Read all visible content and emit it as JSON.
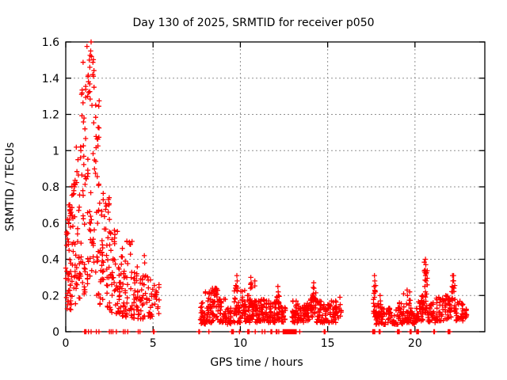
{
  "chart_data": {
    "type": "scatter",
    "title": "Day 130 of 2025, SRMTID for receiver p050",
    "xlabel": "GPS time / hours",
    "ylabel": "SRMTID / TECUs",
    "xlim": [
      0,
      24
    ],
    "ylim": [
      0,
      1.6
    ],
    "xticks": [
      0,
      5,
      10,
      15,
      20
    ],
    "xtick_labels": [
      "0",
      "5",
      "10",
      "15",
      "20"
    ],
    "yticks": [
      0,
      0.2,
      0.4,
      0.6,
      0.8,
      1.0,
      1.2,
      1.4,
      1.6
    ],
    "ytick_labels": [
      "0",
      "0.2",
      "0.4",
      "0.6",
      "0.8",
      "1",
      "1.2",
      "1.4",
      "1.6"
    ],
    "grid": true,
    "legend_position": "none",
    "background": "#ffffff",
    "axis_color": "#000000",
    "grid_color": "#909090",
    "marker": {
      "shape": "plus",
      "color": "#ff0000",
      "size": 7
    },
    "series": [
      {
        "name": "SRMTID",
        "note": "dense noisy scatter; bands give [x_start, x_end, y_min, y_max, n_points, bottom_bias] envelopes read from the plot",
        "bands": [
          [
            0.0,
            0.3,
            0.12,
            0.72,
            38,
            1.6
          ],
          [
            0.3,
            0.6,
            0.15,
            0.85,
            28,
            1.6
          ],
          [
            0.6,
            0.9,
            0.18,
            1.05,
            28,
            1.5
          ],
          [
            0.9,
            1.2,
            0.2,
            1.5,
            32,
            1.4
          ],
          [
            1.2,
            1.65,
            0.25,
            1.58,
            40,
            1.15
          ],
          [
            1.65,
            1.95,
            0.2,
            1.35,
            28,
            1.5
          ],
          [
            1.95,
            2.3,
            0.15,
            0.8,
            28,
            1.6
          ],
          [
            2.3,
            2.65,
            0.1,
            0.74,
            28,
            1.5
          ],
          [
            2.65,
            3.0,
            0.1,
            0.56,
            26,
            1.5
          ],
          [
            3.0,
            3.4,
            0.08,
            0.46,
            28,
            1.5
          ],
          [
            3.4,
            3.8,
            0.08,
            0.5,
            26,
            1.5
          ],
          [
            3.8,
            4.2,
            0.07,
            0.4,
            24,
            1.5
          ],
          [
            4.2,
            4.6,
            0.07,
            0.43,
            22,
            1.5
          ],
          [
            4.6,
            5.0,
            0.08,
            0.32,
            20,
            1.4
          ],
          [
            5.0,
            5.35,
            0.1,
            0.26,
            14,
            1.2
          ],
          [
            7.7,
            8.0,
            0.04,
            0.16,
            24,
            1.4
          ],
          [
            8.0,
            8.4,
            0.05,
            0.22,
            30,
            1.5
          ],
          [
            8.4,
            8.8,
            0.06,
            0.24,
            30,
            1.5
          ],
          [
            8.8,
            9.15,
            0.05,
            0.18,
            24,
            1.5
          ],
          [
            9.15,
            9.5,
            0.04,
            0.13,
            20,
            1.3
          ],
          [
            9.6,
            9.9,
            0.05,
            0.28,
            26,
            1.5
          ],
          [
            9.9,
            10.25,
            0.05,
            0.25,
            28,
            1.5
          ],
          [
            10.25,
            10.55,
            0.05,
            0.2,
            26,
            1.5
          ],
          [
            10.55,
            10.85,
            0.06,
            0.28,
            26,
            1.5
          ],
          [
            10.85,
            11.2,
            0.05,
            0.17,
            28,
            1.4
          ],
          [
            11.2,
            11.6,
            0.06,
            0.22,
            30,
            1.5
          ],
          [
            11.6,
            12.0,
            0.05,
            0.17,
            30,
            1.4
          ],
          [
            12.0,
            12.3,
            0.06,
            0.22,
            24,
            1.5
          ],
          [
            12.3,
            12.6,
            0.05,
            0.15,
            16,
            1.3
          ],
          [
            12.95,
            13.3,
            0.05,
            0.17,
            26,
            1.4
          ],
          [
            13.3,
            13.7,
            0.05,
            0.15,
            26,
            1.4
          ],
          [
            13.7,
            14.1,
            0.06,
            0.18,
            28,
            1.4
          ],
          [
            14.1,
            14.35,
            0.08,
            0.25,
            20,
            1.2
          ],
          [
            14.35,
            14.75,
            0.05,
            0.17,
            26,
            1.4
          ],
          [
            14.75,
            15.1,
            0.05,
            0.15,
            24,
            1.4
          ],
          [
            15.1,
            15.5,
            0.05,
            0.17,
            26,
            1.4
          ],
          [
            15.5,
            15.8,
            0.07,
            0.15,
            10,
            1.2
          ],
          [
            17.6,
            17.75,
            0.08,
            0.26,
            14,
            1.1
          ],
          [
            17.75,
            18.1,
            0.04,
            0.16,
            26,
            1.5
          ],
          [
            18.1,
            18.6,
            0.04,
            0.13,
            30,
            1.4
          ],
          [
            18.6,
            18.9,
            0.04,
            0.1,
            14,
            1.3
          ],
          [
            18.9,
            19.35,
            0.04,
            0.16,
            28,
            1.5
          ],
          [
            19.35,
            19.75,
            0.05,
            0.22,
            28,
            1.5
          ],
          [
            19.75,
            20.1,
            0.04,
            0.13,
            22,
            1.4
          ],
          [
            20.1,
            20.5,
            0.06,
            0.2,
            26,
            1.4
          ],
          [
            20.5,
            20.72,
            0.1,
            0.4,
            20,
            1.1
          ],
          [
            20.72,
            21.2,
            0.05,
            0.16,
            26,
            1.5
          ],
          [
            21.2,
            21.7,
            0.06,
            0.19,
            28,
            1.5
          ],
          [
            21.7,
            22.1,
            0.07,
            0.2,
            26,
            1.4
          ],
          [
            22.1,
            22.3,
            0.1,
            0.31,
            16,
            1.2
          ],
          [
            22.3,
            22.75,
            0.06,
            0.19,
            26,
            1.5
          ],
          [
            22.75,
            23.0,
            0.06,
            0.14,
            12,
            1.3
          ]
        ],
        "peaks": [
          [
            1.45,
            1.6
          ],
          [
            1.43,
            1.55
          ],
          [
            1.47,
            1.52
          ],
          [
            1.35,
            1.5
          ],
          [
            1.38,
            1.46
          ],
          [
            1.55,
            1.42
          ],
          [
            1.3,
            1.38
          ],
          [
            1.62,
            1.35
          ],
          [
            1.25,
            1.3
          ],
          [
            1.5,
            1.25
          ],
          [
            1.05,
            1.18
          ],
          [
            1.1,
            1.12
          ],
          [
            0.85,
            1.02
          ],
          [
            0.7,
            0.95
          ],
          [
            0.5,
            0.8
          ],
          [
            0.18,
            0.7
          ],
          [
            0.25,
            0.64
          ],
          [
            0.1,
            0.62
          ],
          [
            0.05,
            0.55
          ],
          [
            2.45,
            0.73
          ],
          [
            2.47,
            0.7
          ],
          [
            2.43,
            0.66
          ],
          [
            2.5,
            0.62
          ],
          [
            3.5,
            0.5
          ],
          [
            4.5,
            0.42
          ],
          [
            4.52,
            0.38
          ],
          [
            8.55,
            0.24
          ],
          [
            8.35,
            0.22
          ],
          [
            9.8,
            0.31
          ],
          [
            9.82,
            0.28
          ],
          [
            9.78,
            0.25
          ],
          [
            10.6,
            0.3
          ],
          [
            10.62,
            0.27
          ],
          [
            10.58,
            0.24
          ],
          [
            12.15,
            0.25
          ],
          [
            12.17,
            0.22
          ],
          [
            14.2,
            0.27
          ],
          [
            14.22,
            0.24
          ],
          [
            14.18,
            0.21
          ],
          [
            15.7,
            0.19
          ],
          [
            15.72,
            0.15
          ],
          [
            15.68,
            0.12
          ],
          [
            17.68,
            0.31
          ],
          [
            17.7,
            0.28
          ],
          [
            17.66,
            0.25
          ],
          [
            17.72,
            0.22
          ],
          [
            17.68,
            0.19
          ],
          [
            18.0,
            0.2
          ],
          [
            18.02,
            0.17
          ],
          [
            19.55,
            0.23
          ],
          [
            19.57,
            0.2
          ],
          [
            19.7,
            0.22
          ],
          [
            20.6,
            0.4
          ],
          [
            20.62,
            0.37
          ],
          [
            20.58,
            0.34
          ],
          [
            20.6,
            0.31
          ],
          [
            20.64,
            0.28
          ],
          [
            20.56,
            0.25
          ],
          [
            20.6,
            0.22
          ],
          [
            22.15,
            0.31
          ],
          [
            22.17,
            0.28
          ],
          [
            22.13,
            0.25
          ],
          [
            22.15,
            0.22
          ]
        ],
        "zeros": [
          1.08,
          1.12,
          1.16,
          1.3,
          1.45,
          1.75,
          1.9,
          2.5,
          2.6,
          2.7,
          2.9,
          3.3,
          3.4,
          3.55,
          4.15,
          4.25,
          5.02,
          5.06,
          7.62,
          7.66,
          8.2,
          9.5,
          9.55,
          9.6,
          9.95,
          10.42,
          10.46,
          10.5,
          10.85,
          11.25,
          11.4,
          11.75,
          11.8,
          12.05,
          12.1,
          12.2,
          12.45,
          12.5,
          12.55,
          12.6,
          12.65,
          12.7,
          12.75,
          12.8,
          12.85,
          12.9,
          12.95,
          13.0,
          13.05,
          13.1,
          13.15,
          13.2,
          13.4,
          14.8,
          14.85,
          17.58,
          17.62,
          17.66,
          17.7,
          17.95,
          18.0,
          19.0,
          19.05,
          19.1,
          19.72,
          19.78,
          20.1,
          20.15,
          20.2,
          21.08,
          21.12,
          21.9,
          21.95,
          22.0
        ]
      }
    ]
  }
}
